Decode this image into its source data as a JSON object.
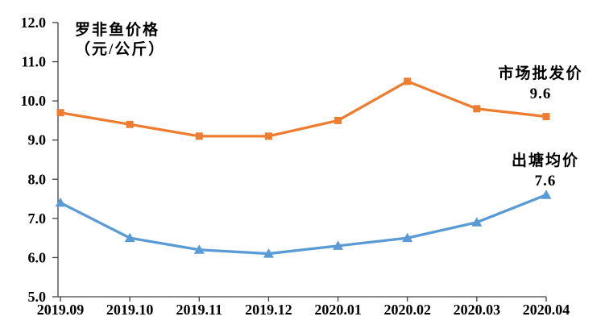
{
  "chart_data": {
    "type": "line",
    "title": "罗非鱼价格",
    "title_line2": "（元/公斤）",
    "categories": [
      "2019.09",
      "2019.10",
      "2019.11",
      "2019.12",
      "2020.01",
      "2020.02",
      "2020.03",
      "2020.04"
    ],
    "series": [
      {
        "name": "市场批发价",
        "values": [
          9.7,
          9.4,
          9.1,
          9.1,
          9.5,
          10.5,
          9.8,
          9.6
        ],
        "color": "#ED7D31",
        "marker": "square",
        "end_label": "9.6"
      },
      {
        "name": "出塘均价",
        "values": [
          7.4,
          6.5,
          6.2,
          6.1,
          6.3,
          6.5,
          6.9,
          7.6
        ],
        "color": "#5B9BD5",
        "marker": "triangle",
        "end_label": "7.6"
      }
    ],
    "ylim": [
      5.0,
      12.0
    ],
    "yticks": [
      {
        "value": 12.0,
        "label": "12.0"
      },
      {
        "value": 11.0,
        "label": "11.0"
      },
      {
        "value": 10.0,
        "label": "10.0"
      },
      {
        "value": 9.0,
        "label": "9.0"
      },
      {
        "value": 8.0,
        "label": "8.0"
      },
      {
        "value": 7.0,
        "label": "7.0"
      },
      {
        "value": 6.0,
        "label": "6.0"
      },
      {
        "value": 5.0,
        "label": "5.0"
      }
    ],
    "grid": false,
    "legend_position": "inline-right",
    "axis_color": "#404040",
    "text_color": "#000000"
  }
}
